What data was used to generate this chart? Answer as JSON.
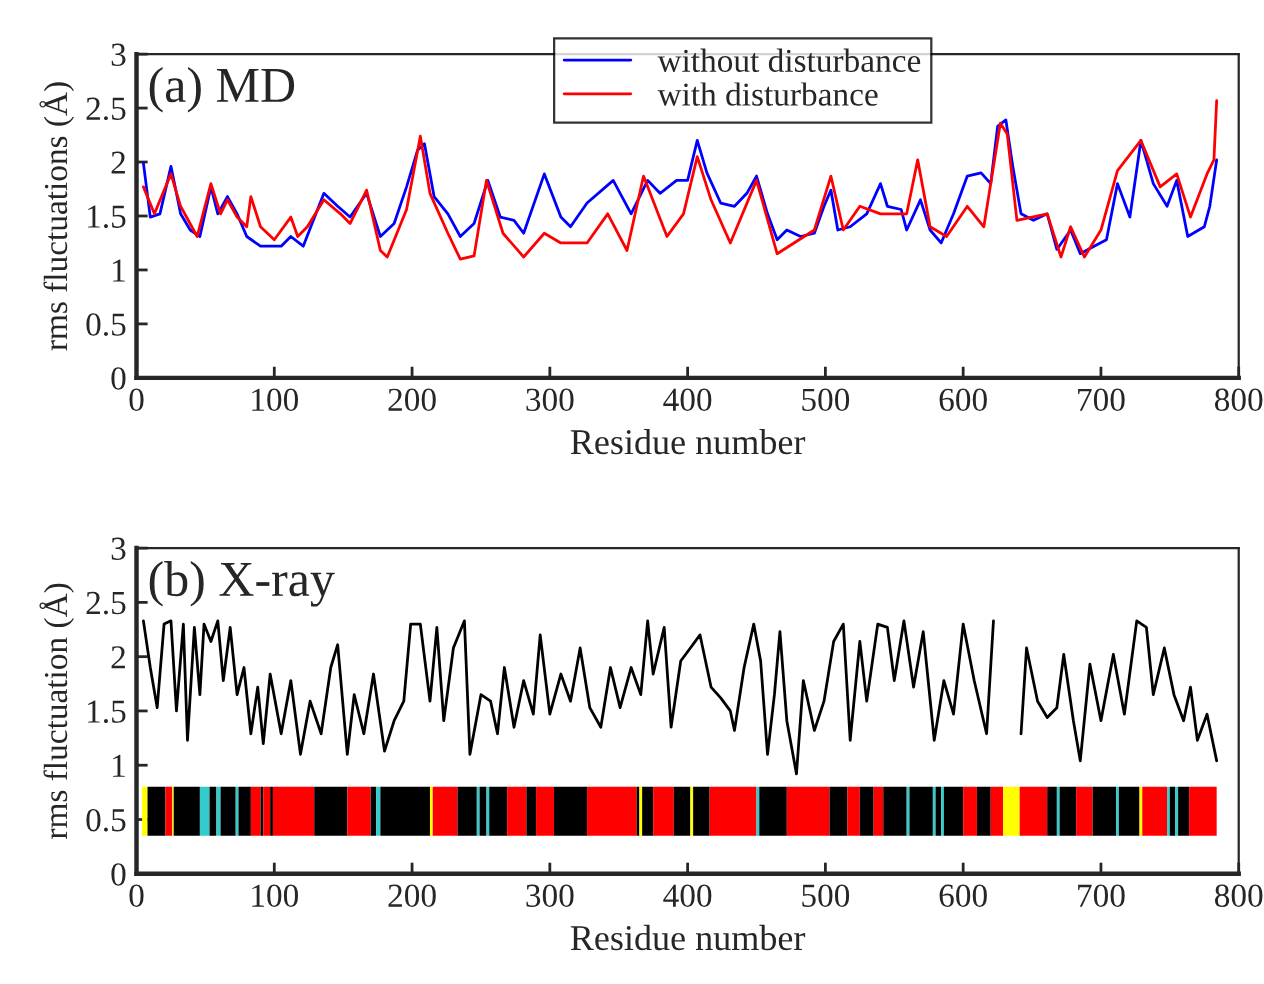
{
  "chart_data": [
    {
      "type": "line",
      "title": "(a) MD",
      "xlabel": "Residue number",
      "ylabel": "rms fluctuations (Å)",
      "xlim": [
        0,
        800
      ],
      "ylim": [
        0,
        3
      ],
      "xticks": [
        0,
        100,
        200,
        300,
        400,
        500,
        600,
        700,
        800
      ],
      "yticks": [
        0,
        0.5,
        1,
        1.5,
        2,
        2.5,
        3
      ],
      "legend": "top",
      "grid": false,
      "series": [
        {
          "name": "without disturbance",
          "color": "#0000ff",
          "x": [
            5,
            10,
            17,
            25,
            32,
            39,
            46,
            54,
            59,
            66,
            73,
            80,
            90,
            105,
            112,
            121,
            136,
            146,
            155,
            167,
            177,
            187,
            196,
            204,
            209,
            216,
            226,
            235,
            245,
            255,
            264,
            274,
            281,
            296,
            308,
            315,
            327,
            346,
            359,
            371,
            380,
            392,
            400,
            407,
            414,
            424,
            434,
            443,
            450,
            458,
            465,
            472,
            482,
            492,
            499,
            504,
            509,
            518,
            530,
            540,
            545,
            555,
            559,
            569,
            576,
            584,
            593,
            603,
            613,
            620,
            625,
            631,
            636,
            642,
            651,
            661,
            668,
            678,
            685,
            695,
            704,
            712,
            721,
            729,
            738,
            748,
            755,
            763,
            775,
            779,
            784
          ],
          "values": [
            1.99,
            1.49,
            1.52,
            1.96,
            1.52,
            1.37,
            1.31,
            1.77,
            1.52,
            1.68,
            1.52,
            1.31,
            1.22,
            1.22,
            1.31,
            1.22,
            1.71,
            1.59,
            1.49,
            1.71,
            1.31,
            1.43,
            1.77,
            2.11,
            2.17,
            1.68,
            1.52,
            1.31,
            1.43,
            1.83,
            1.49,
            1.46,
            1.34,
            1.89,
            1.49,
            1.4,
            1.62,
            1.83,
            1.52,
            1.83,
            1.71,
            1.83,
            1.83,
            2.2,
            1.9,
            1.62,
            1.59,
            1.71,
            1.87,
            1.52,
            1.28,
            1.37,
            1.31,
            1.34,
            1.59,
            1.74,
            1.37,
            1.4,
            1.52,
            1.8,
            1.59,
            1.56,
            1.37,
            1.65,
            1.37,
            1.25,
            1.52,
            1.87,
            1.9,
            1.8,
            2.33,
            2.39,
            1.96,
            1.52,
            1.46,
            1.52,
            1.19,
            1.37,
            1.15,
            1.22,
            1.28,
            1.8,
            1.49,
            2.2,
            1.8,
            1.59,
            1.83,
            1.31,
            1.4,
            1.59,
            2.02
          ]
        },
        {
          "name": "with disturbance",
          "color": "#ff0000",
          "x": [
            5,
            13,
            25,
            32,
            44,
            54,
            61,
            66,
            73,
            80,
            83,
            90,
            100,
            112,
            117,
            124,
            136,
            148,
            155,
            167,
            177,
            182,
            196,
            206,
            213,
            226,
            235,
            245,
            254,
            266,
            281,
            296,
            308,
            327,
            342,
            356,
            368,
            385,
            397,
            407,
            417,
            431,
            450,
            465,
            492,
            504,
            513,
            525,
            540,
            559,
            567,
            576,
            588,
            603,
            615,
            627,
            632,
            639,
            661,
            671,
            678,
            688,
            700,
            712,
            729,
            743,
            755,
            765,
            777,
            782,
            784
          ],
          "values": [
            1.77,
            1.52,
            1.89,
            1.59,
            1.31,
            1.8,
            1.52,
            1.65,
            1.49,
            1.4,
            1.68,
            1.4,
            1.28,
            1.49,
            1.31,
            1.4,
            1.65,
            1.52,
            1.43,
            1.74,
            1.18,
            1.12,
            1.56,
            2.24,
            1.71,
            1.34,
            1.1,
            1.13,
            1.83,
            1.34,
            1.12,
            1.34,
            1.25,
            1.25,
            1.52,
            1.18,
            1.87,
            1.31,
            1.52,
            2.05,
            1.65,
            1.25,
            1.83,
            1.15,
            1.37,
            1.87,
            1.37,
            1.59,
            1.52,
            1.52,
            2.02,
            1.4,
            1.31,
            1.59,
            1.4,
            2.36,
            2.26,
            1.46,
            1.52,
            1.12,
            1.4,
            1.12,
            1.37,
            1.92,
            2.2,
            1.77,
            1.89,
            1.49,
            1.89,
            2.02,
            2.57
          ]
        }
      ]
    },
    {
      "type": "line",
      "title": "(b) X-ray",
      "xlabel": "Residue number",
      "ylabel": "rms fluctuation (Å)",
      "xlim": [
        0,
        800
      ],
      "ylim": [
        0,
        3
      ],
      "xticks": [
        0,
        100,
        200,
        300,
        400,
        500,
        600,
        700,
        800
      ],
      "yticks": [
        0,
        0.5,
        1,
        1.5,
        2,
        2.5,
        3
      ],
      "grid": false,
      "series": [
        {
          "color": "#000000",
          "x": [
            5,
            10,
            15,
            20,
            25,
            29,
            34,
            37,
            42,
            46,
            49,
            54,
            59,
            63,
            68,
            73,
            78,
            83,
            88,
            92,
            97,
            105,
            112,
            119,
            126,
            134,
            141,
            146,
            153,
            158,
            165,
            172,
            180,
            187,
            194,
            199,
            206,
            213,
            218,
            223,
            230,
            238,
            242,
            250,
            257,
            262,
            267,
            274,
            281,
            288,
            293,
            300,
            308,
            315,
            322,
            329,
            337,
            344,
            351,
            359,
            366,
            371,
            375,
            383,
            388,
            395,
            402,
            409,
            417,
            424,
            431,
            434,
            441,
            448,
            453,
            458,
            463,
            467,
            472,
            479,
            484,
            492,
            499,
            506,
            513,
            518,
            525,
            530,
            538,
            545,
            550,
            557,
            564,
            571,
            579,
            586,
            593,
            600,
            608,
            617,
            622,
            630,
            642,
            646,
            654,
            661,
            668,
            673,
            680,
            685,
            692,
            700,
            709,
            717,
            726,
            733,
            738,
            746,
            753,
            760,
            765,
            770,
            777,
            784
          ],
          "values": [
            2.33,
            1.9,
            1.53,
            2.3,
            2.33,
            1.5,
            2.3,
            1.23,
            2.27,
            1.65,
            2.3,
            2.14,
            2.33,
            1.78,
            2.27,
            1.65,
            1.9,
            1.29,
            1.72,
            1.2,
            1.84,
            1.29,
            1.78,
            1.1,
            1.59,
            1.29,
            1.9,
            2.11,
            1.1,
            1.65,
            1.29,
            1.84,
            1.13,
            1.41,
            1.59,
            2.3,
            2.3,
            1.59,
            2.27,
            1.41,
            2.08,
            2.33,
            1.1,
            1.65,
            1.59,
            1.29,
            1.9,
            1.35,
            1.78,
            1.47,
            2.2,
            1.47,
            1.84,
            1.59,
            2.08,
            1.53,
            1.35,
            1.9,
            1.53,
            1.9,
            1.65,
            2.33,
            1.84,
            2.27,
            1.35,
            1.96,
            2.08,
            2.2,
            1.72,
            1.62,
            1.5,
            1.32,
            1.9,
            2.3,
            1.96,
            1.1,
            1.65,
            2.23,
            1.41,
            0.92,
            1.78,
            1.32,
            1.59,
            2.14,
            2.3,
            1.23,
            2.14,
            1.59,
            2.3,
            2.27,
            1.78,
            2.33,
            1.72,
            2.23,
            1.23,
            1.78,
            1.47,
            2.3,
            1.78,
            1.29,
            2.33,
            null,
            1.29,
            2.08,
            1.59,
            1.44,
            1.53,
            2.02,
            1.41,
            1.04,
            1.93,
            1.41,
            2.02,
            1.47,
            2.33,
            2.27,
            1.65,
            2.08,
            1.65,
            1.41,
            1.72,
            1.23,
            1.47,
            1.04
          ]
        }
      ],
      "bands": [
        {
          "axis": "x",
          "from": 4,
          "to": 8,
          "color": "#ffff00"
        },
        {
          "axis": "x",
          "from": 8,
          "to": 21,
          "color": "#000000"
        },
        {
          "axis": "x",
          "from": 21,
          "to": 26,
          "color": "#ff0000"
        },
        {
          "axis": "x",
          "from": 26,
          "to": 27,
          "color": "#ffff00"
        },
        {
          "axis": "x",
          "from": 27,
          "to": 46,
          "color": "#000000"
        },
        {
          "axis": "x",
          "from": 46,
          "to": 53,
          "color": "#33cccc"
        },
        {
          "axis": "x",
          "from": 53,
          "to": 58,
          "color": "#000000"
        },
        {
          "axis": "x",
          "from": 58,
          "to": 61,
          "color": "#33cccc"
        },
        {
          "axis": "x",
          "from": 61,
          "to": 72,
          "color": "#000000"
        },
        {
          "axis": "x",
          "from": 72,
          "to": 74,
          "color": "#33cccc"
        },
        {
          "axis": "x",
          "from": 74,
          "to": 83,
          "color": "#000000"
        },
        {
          "axis": "x",
          "from": 83,
          "to": 90,
          "color": "#ff0000"
        },
        {
          "axis": "x",
          "from": 90,
          "to": 92,
          "color": "#000000"
        },
        {
          "axis": "x",
          "from": 92,
          "to": 97,
          "color": "#ff0000"
        },
        {
          "axis": "x",
          "from": 97,
          "to": 99,
          "color": "#000000"
        },
        {
          "axis": "x",
          "from": 99,
          "to": 129,
          "color": "#ff0000"
        },
        {
          "axis": "x",
          "from": 129,
          "to": 153,
          "color": "#000000"
        },
        {
          "axis": "x",
          "from": 153,
          "to": 170,
          "color": "#ff0000"
        },
        {
          "axis": "x",
          "from": 170,
          "to": 174,
          "color": "#000000"
        },
        {
          "axis": "x",
          "from": 174,
          "to": 177,
          "color": "#33cccc"
        },
        {
          "axis": "x",
          "from": 177,
          "to": 213,
          "color": "#000000"
        },
        {
          "axis": "x",
          "from": 213,
          "to": 215,
          "color": "#ffff00"
        },
        {
          "axis": "x",
          "from": 215,
          "to": 233,
          "color": "#ff0000"
        },
        {
          "axis": "x",
          "from": 233,
          "to": 247,
          "color": "#000000"
        },
        {
          "axis": "x",
          "from": 247,
          "to": 249,
          "color": "#33cccc"
        },
        {
          "axis": "x",
          "from": 249,
          "to": 254,
          "color": "#000000"
        },
        {
          "axis": "x",
          "from": 254,
          "to": 256,
          "color": "#33cccc"
        },
        {
          "axis": "x",
          "from": 256,
          "to": 269,
          "color": "#000000"
        },
        {
          "axis": "x",
          "from": 269,
          "to": 283,
          "color": "#ff0000"
        },
        {
          "axis": "x",
          "from": 283,
          "to": 290,
          "color": "#000000"
        },
        {
          "axis": "x",
          "from": 290,
          "to": 303,
          "color": "#ff0000"
        },
        {
          "axis": "x",
          "from": 303,
          "to": 327,
          "color": "#000000"
        },
        {
          "axis": "x",
          "from": 327,
          "to": 363,
          "color": "#ff0000"
        },
        {
          "axis": "x",
          "from": 363,
          "to": 365,
          "color": "#000000"
        },
        {
          "axis": "x",
          "from": 365,
          "to": 367,
          "color": "#ffff00"
        },
        {
          "axis": "x",
          "from": 367,
          "to": 375,
          "color": "#000000"
        },
        {
          "axis": "x",
          "from": 375,
          "to": 390,
          "color": "#ff0000"
        },
        {
          "axis": "x",
          "from": 390,
          "to": 402,
          "color": "#000000"
        },
        {
          "axis": "x",
          "from": 402,
          "to": 404,
          "color": "#ffff00"
        },
        {
          "axis": "x",
          "from": 404,
          "to": 416,
          "color": "#000000"
        },
        {
          "axis": "x",
          "from": 416,
          "to": 450,
          "color": "#ff0000"
        },
        {
          "axis": "x",
          "from": 450,
          "to": 452,
          "color": "#33cccc"
        },
        {
          "axis": "x",
          "from": 452,
          "to": 472,
          "color": "#000000"
        },
        {
          "axis": "x",
          "from": 472,
          "to": 503,
          "color": "#ff0000"
        },
        {
          "axis": "x",
          "from": 503,
          "to": 516,
          "color": "#000000"
        },
        {
          "axis": "x",
          "from": 516,
          "to": 525,
          "color": "#ff0000"
        },
        {
          "axis": "x",
          "from": 525,
          "to": 535,
          "color": "#000000"
        },
        {
          "axis": "x",
          "from": 535,
          "to": 542,
          "color": "#ff0000"
        },
        {
          "axis": "x",
          "from": 542,
          "to": 559,
          "color": "#000000"
        },
        {
          "axis": "x",
          "from": 559,
          "to": 561,
          "color": "#33cccc"
        },
        {
          "axis": "x",
          "from": 561,
          "to": 578,
          "color": "#000000"
        },
        {
          "axis": "x",
          "from": 578,
          "to": 580,
          "color": "#33cccc"
        },
        {
          "axis": "x",
          "from": 580,
          "to": 584,
          "color": "#000000"
        },
        {
          "axis": "x",
          "from": 584,
          "to": 586,
          "color": "#33cccc"
        },
        {
          "axis": "x",
          "from": 586,
          "to": 600,
          "color": "#000000"
        },
        {
          "axis": "x",
          "from": 600,
          "to": 610,
          "color": "#ff0000"
        },
        {
          "axis": "x",
          "from": 610,
          "to": 620,
          "color": "#000000"
        },
        {
          "axis": "x",
          "from": 620,
          "to": 629,
          "color": "#ff0000"
        },
        {
          "axis": "x",
          "from": 629,
          "to": 641,
          "color": "#ffff00"
        },
        {
          "axis": "x",
          "from": 641,
          "to": 661,
          "color": "#ff0000"
        },
        {
          "axis": "x",
          "from": 661,
          "to": 668,
          "color": "#000000"
        },
        {
          "axis": "x",
          "from": 668,
          "to": 670,
          "color": "#33cccc"
        },
        {
          "axis": "x",
          "from": 670,
          "to": 682,
          "color": "#000000"
        },
        {
          "axis": "x",
          "from": 682,
          "to": 694,
          "color": "#ff0000"
        },
        {
          "axis": "x",
          "from": 694,
          "to": 711,
          "color": "#000000"
        },
        {
          "axis": "x",
          "from": 711,
          "to": 713,
          "color": "#33cccc"
        },
        {
          "axis": "x",
          "from": 713,
          "to": 728,
          "color": "#000000"
        },
        {
          "axis": "x",
          "from": 728,
          "to": 730,
          "color": "#ffff00"
        },
        {
          "axis": "x",
          "from": 730,
          "to": 748,
          "color": "#ff0000"
        },
        {
          "axis": "x",
          "from": 748,
          "to": 750,
          "color": "#33cccc"
        },
        {
          "axis": "x",
          "from": 750,
          "to": 754,
          "color": "#000000"
        },
        {
          "axis": "x",
          "from": 754,
          "to": 756,
          "color": "#33cccc"
        },
        {
          "axis": "x",
          "from": 756,
          "to": 764,
          "color": "#000000"
        },
        {
          "axis": "x",
          "from": 764,
          "to": 784,
          "color": "#ff0000"
        }
      ]
    }
  ]
}
